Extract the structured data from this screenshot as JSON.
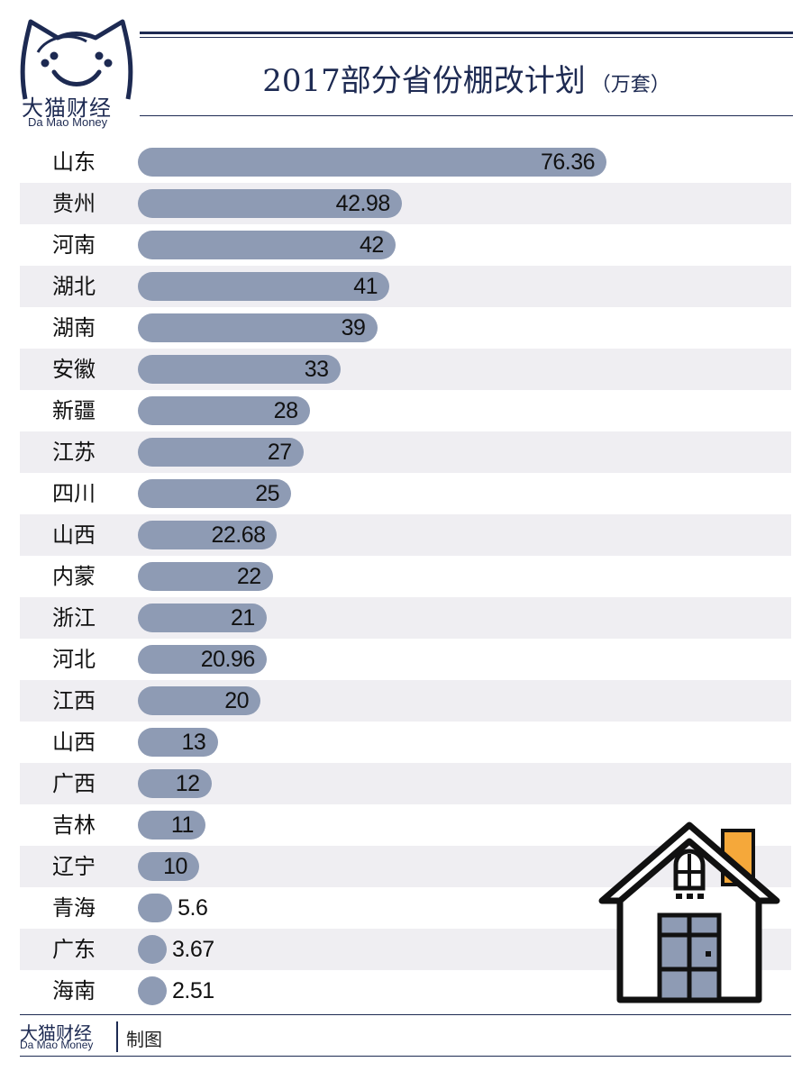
{
  "brand": {
    "name_cn": "大猫财经",
    "name_en": "Da Mao Money",
    "credit": "制图",
    "color": "#1d2a52"
  },
  "bar_color": "#8e9bb4",
  "icons": [
    "cat-logo-icon",
    "house-icon"
  ],
  "chart_data": {
    "type": "bar",
    "orientation": "horizontal",
    "title": "2017部分省份棚改计划",
    "unit": "（万套）",
    "categories": [
      "山东",
      "贵州",
      "河南",
      "湖北",
      "湖南",
      "安徽",
      "新疆",
      "江苏",
      "四川",
      "山西",
      "内蒙",
      "浙江",
      "河北",
      "江西",
      "山西",
      "广西",
      "吉林",
      "辽宁",
      "青海",
      "广东",
      "海南"
    ],
    "values": [
      76.36,
      42.98,
      42,
      41,
      39,
      33,
      28,
      27,
      25,
      22.68,
      22,
      21,
      20.96,
      20,
      13,
      12,
      11,
      10,
      5.6,
      3.67,
      2.51
    ],
    "value_labels": [
      "76.36",
      "42.98",
      "42",
      "41",
      "39",
      "33",
      "28",
      "27",
      "25",
      "22.68",
      "22",
      "21",
      "20.96",
      "20",
      "13",
      "12",
      "11",
      "10",
      "5.6",
      "3.67",
      "2.51"
    ],
    "xlim": [
      0,
      76.36
    ]
  }
}
